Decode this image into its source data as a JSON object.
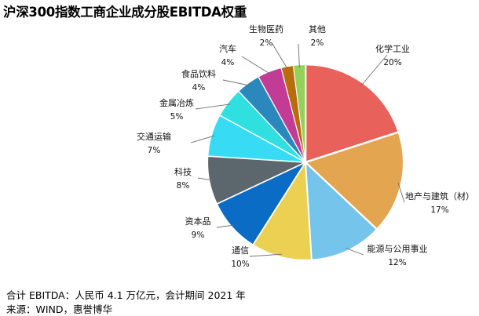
{
  "title": "沪深300指数工商企业成分股EBITDA权重",
  "chart_data": {
    "type": "pie",
    "title": "沪深300指数工商企业成分股EBITDA权重",
    "unit": "%",
    "slices": [
      {
        "label": "化学工业",
        "value": 20,
        "value_label": "20%",
        "color": "#e8615a"
      },
      {
        "label": "地产与建筑（材）",
        "value": 17,
        "value_label": "17%",
        "color": "#e3a54f"
      },
      {
        "label": "能源与公用事业",
        "value": 12,
        "value_label": "12%",
        "color": "#74c4ec"
      },
      {
        "label": "通信",
        "value": 10,
        "value_label": "10%",
        "color": "#ebd052"
      },
      {
        "label": "资本品",
        "value": 9,
        "value_label": "9%",
        "color": "#0a6cc4"
      },
      {
        "label": "科技",
        "value": 8,
        "value_label": "8%",
        "color": "#5b666d"
      },
      {
        "label": "交通运输",
        "value": 7,
        "value_label": "7%",
        "color": "#37dcf4"
      },
      {
        "label": "金属冶炼",
        "value": 5,
        "value_label": "5%",
        "color": "#30dfdf"
      },
      {
        "label": "食品饮料",
        "value": 4,
        "value_label": "4%",
        "color": "#2a88bd"
      },
      {
        "label": "汽车",
        "value": 4,
        "value_label": "4%",
        "color": "#c23c95"
      },
      {
        "label": "生物医药",
        "value": 2,
        "value_label": "2%",
        "color": "#b86c0e"
      },
      {
        "label": "其他",
        "value": 2,
        "value_label": "2%",
        "color": "#94d05a"
      }
    ]
  },
  "notes": {
    "total": "合计 EBITDA：人民币 4.1 万亿元，会计期间 2021 年",
    "source": "来源：WIND，惠誉博华"
  }
}
